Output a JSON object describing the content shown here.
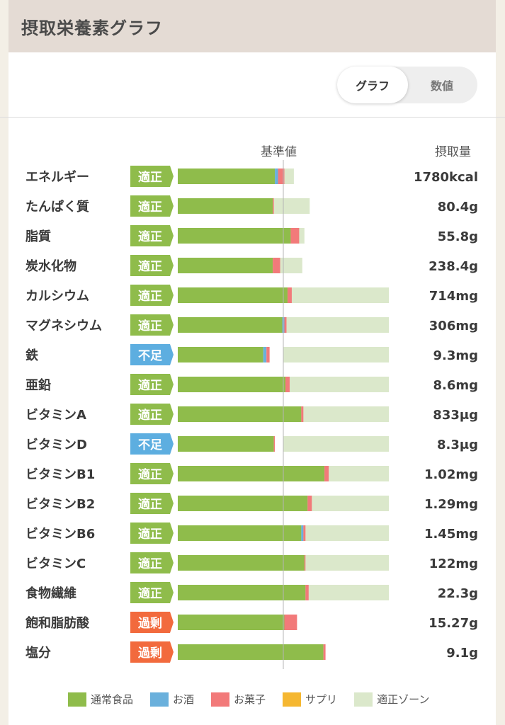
{
  "header": {
    "title": "摂取栄養素グラフ"
  },
  "toggle": {
    "graph_label": "グラフ",
    "value_label": "数値"
  },
  "columns": {
    "standard": "基準値",
    "intake": "摂取量"
  },
  "colors": {
    "food": "#8fbc4b",
    "alcohol": "#6ab0dc",
    "snack": "#f27a7a",
    "supplement": "#f5b731",
    "zone": "#dbe8cb",
    "status_ok": "#8fbc4b",
    "status_low": "#5daee0",
    "status_high": "#f26a3d"
  },
  "legend": [
    {
      "label": "通常食品",
      "color": "#8fbc4b"
    },
    {
      "label": "お酒",
      "color": "#6ab0dc"
    },
    {
      "label": "お菓子",
      "color": "#f27a7a"
    },
    {
      "label": "サプリ",
      "color": "#f5b731"
    },
    {
      "label": "適正ゾーン",
      "color": "#dbe8cb"
    }
  ],
  "chart_data": {
    "type": "bar",
    "orientation": "horizontal",
    "stacked": true,
    "value_unit": "percent of standard",
    "standard_value": 100,
    "series_names": [
      "通常食品",
      "お酒",
      "お菓子",
      "サプリ"
    ],
    "rows": [
      {
        "name": "エネルギー",
        "status": "適正",
        "intake": "1780kcal",
        "food": 92,
        "alcohol": 3,
        "snack": 6,
        "supplement": 0,
        "zone": [
          95,
          110
        ]
      },
      {
        "name": "たんぱく質",
        "status": "適正",
        "intake": "80.4g",
        "food": 90,
        "alcohol": 0,
        "snack": 1,
        "supplement": 0,
        "zone": [
          65,
          125
        ]
      },
      {
        "name": "脂質",
        "status": "適正",
        "intake": "55.8g",
        "food": 107,
        "alcohol": 0,
        "snack": 8,
        "supplement": 0,
        "zone": [
          80,
          120
        ]
      },
      {
        "name": "炭水化物",
        "status": "適正",
        "intake": "238.4g",
        "food": 90,
        "alcohol": 0,
        "snack": 7,
        "supplement": 0,
        "zone": [
          92,
          118
        ]
      },
      {
        "name": "カルシウム",
        "status": "適正",
        "intake": "714mg",
        "food": 104,
        "alcohol": 0,
        "snack": 4,
        "supplement": 0,
        "zone": [
          100,
          200
        ]
      },
      {
        "name": "マグネシウム",
        "status": "適正",
        "intake": "306mg",
        "food": 99,
        "alcohol": 2,
        "snack": 2,
        "supplement": 0,
        "zone": [
          100,
          200
        ]
      },
      {
        "name": "鉄",
        "status": "不足",
        "intake": "9.3mg",
        "food": 81,
        "alcohol": 3,
        "snack": 3,
        "supplement": 0,
        "zone": [
          100,
          200
        ]
      },
      {
        "name": "亜鉛",
        "status": "適正",
        "intake": "8.6mg",
        "food": 102,
        "alcohol": 0,
        "snack": 4,
        "supplement": 0,
        "zone": [
          100,
          200
        ]
      },
      {
        "name": "ビタミンA",
        "status": "適正",
        "intake": "833μg",
        "food": 117,
        "alcohol": 0,
        "snack": 2,
        "supplement": 0,
        "zone": [
          100,
          200
        ]
      },
      {
        "name": "ビタミンD",
        "status": "不足",
        "intake": "8.3μg",
        "food": 91,
        "alcohol": 0,
        "snack": 1,
        "supplement": 0,
        "zone": [
          100,
          200
        ]
      },
      {
        "name": "ビタミンB1",
        "status": "適正",
        "intake": "1.02mg",
        "food": 139,
        "alcohol": 0,
        "snack": 4,
        "supplement": 0,
        "zone": [
          100,
          200
        ]
      },
      {
        "name": "ビタミンB2",
        "status": "適正",
        "intake": "1.29mg",
        "food": 123,
        "alcohol": 0,
        "snack": 4,
        "supplement": 0,
        "zone": [
          100,
          200
        ]
      },
      {
        "name": "ビタミンB6",
        "status": "適正",
        "intake": "1.45mg",
        "food": 117,
        "alcohol": 2,
        "snack": 2,
        "supplement": 0,
        "zone": [
          100,
          200
        ]
      },
      {
        "name": "ビタミンC",
        "status": "適正",
        "intake": "122mg",
        "food": 120,
        "alcohol": 0,
        "snack": 1,
        "supplement": 0,
        "zone": [
          100,
          200
        ]
      },
      {
        "name": "食物繊維",
        "status": "適正",
        "intake": "22.3g",
        "food": 121,
        "alcohol": 0,
        "snack": 3,
        "supplement": 0,
        "zone": [
          100,
          200
        ]
      },
      {
        "name": "飽和脂肪酸",
        "status": "過剰",
        "intake": "15.27g",
        "food": 101,
        "alcohol": 0,
        "snack": 12,
        "supplement": 0,
        "zone": [
          0,
          100
        ]
      },
      {
        "name": "塩分",
        "status": "過剰",
        "intake": "9.1g",
        "food": 138,
        "alcohol": 0,
        "snack": 2,
        "supplement": 0,
        "zone": [
          0,
          100
        ]
      }
    ]
  }
}
